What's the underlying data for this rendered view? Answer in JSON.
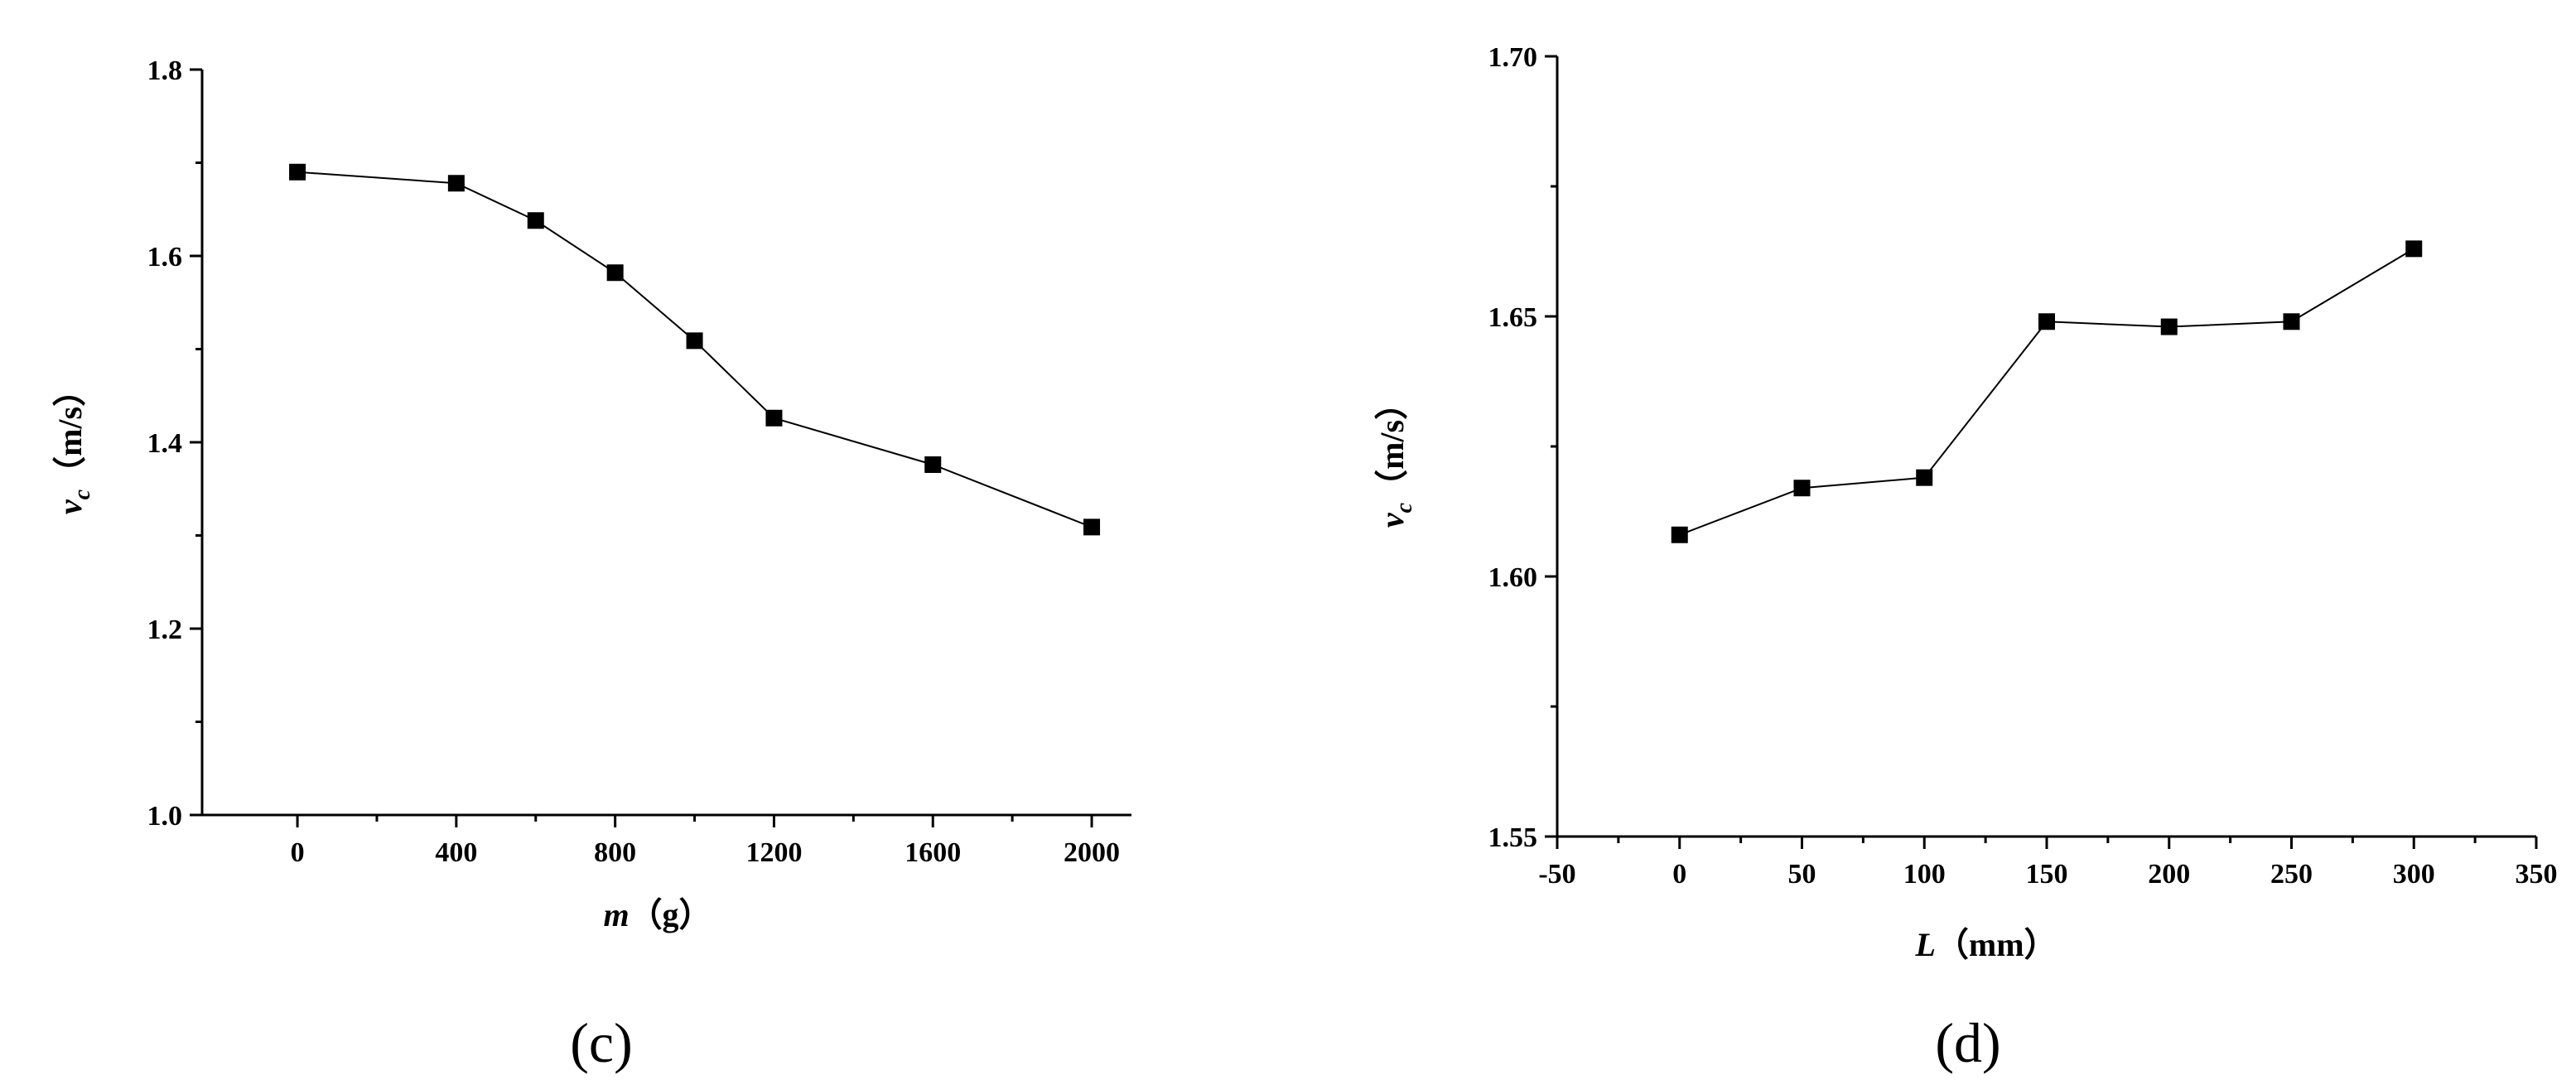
{
  "chart_data": [
    {
      "type": "line",
      "panel_label": "(c)",
      "xlabel": {
        "var": "m",
        "unit": "（g）"
      },
      "ylabel": {
        "var": "v",
        "sub": "c",
        "unit": "（m/s）"
      },
      "xlim": [
        -240,
        2100
      ],
      "ylim": [
        1.0,
        1.8
      ],
      "xticks": [
        0,
        400,
        800,
        1200,
        1600,
        2000
      ],
      "xminor": [
        200,
        600,
        1000,
        1400,
        1800
      ],
      "yticks": [
        1.0,
        1.2,
        1.4,
        1.6,
        1.8
      ],
      "yminor": [
        1.1,
        1.3,
        1.5,
        1.7
      ],
      "ydecimals": 1,
      "marker": "square",
      "series": [
        {
          "x": [
            0,
            400,
            600,
            800,
            1000,
            1200,
            1600,
            2000
          ],
          "y": [
            1.69,
            1.678,
            1.638,
            1.582,
            1.509,
            1.426,
            1.376,
            1.309
          ]
        }
      ]
    },
    {
      "type": "line",
      "panel_label": "(d)",
      "xlabel": {
        "var": "L",
        "unit": "（mm）"
      },
      "ylabel": {
        "var": "v",
        "sub": "c",
        "unit": "（m/s）"
      },
      "xlim": [
        -50,
        350
      ],
      "ylim": [
        1.55,
        1.7
      ],
      "xticks": [
        -50,
        0,
        50,
        100,
        150,
        200,
        250,
        300,
        350
      ],
      "xminor": [
        -25,
        25,
        75,
        125,
        175,
        225,
        275,
        325
      ],
      "yticks": [
        1.55,
        1.6,
        1.65,
        1.7
      ],
      "yminor": [
        1.575,
        1.625,
        1.675
      ],
      "ydecimals": 2,
      "marker": "square",
      "series": [
        {
          "x": [
            0,
            50,
            100,
            150,
            200,
            250,
            300
          ],
          "y": [
            1.608,
            1.617,
            1.619,
            1.649,
            1.648,
            1.649,
            1.663
          ]
        }
      ]
    }
  ]
}
